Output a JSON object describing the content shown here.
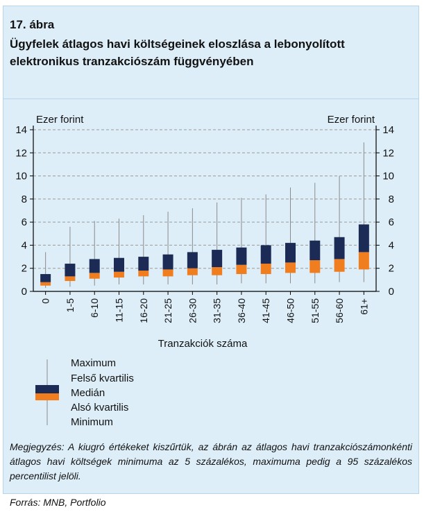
{
  "figure": {
    "number": "17. ábra",
    "title": "Ügyfelek átlagos havi költségeinek eloszlása a lebonyolított elektronikus tranzakciószám függvényében"
  },
  "chart_data": {
    "type": "boxplot",
    "x": [
      "0",
      "1-5",
      "6-10",
      "11-15",
      "16-20",
      "21-25",
      "26-30",
      "31-35",
      "36-40",
      "41-45",
      "46-50",
      "51-55",
      "56-60",
      "61+"
    ],
    "series": [
      {
        "min": [
          0.3,
          0.4,
          0.5,
          0.6,
          0.6,
          0.6,
          0.6,
          0.6,
          0.7,
          0.7,
          0.7,
          0.7,
          0.8,
          0.8
        ],
        "q1": [
          0.5,
          0.9,
          1.1,
          1.2,
          1.3,
          1.3,
          1.4,
          1.4,
          1.5,
          1.5,
          1.6,
          1.6,
          1.7,
          1.9
        ],
        "median": [
          0.8,
          1.3,
          1.6,
          1.7,
          1.8,
          1.9,
          2.0,
          2.1,
          2.3,
          2.4,
          2.5,
          2.7,
          2.8,
          3.4
        ],
        "q3": [
          1.5,
          2.4,
          2.8,
          2.9,
          3.0,
          3.2,
          3.4,
          3.6,
          3.8,
          4.0,
          4.2,
          4.4,
          4.7,
          5.8
        ],
        "max": [
          3.4,
          5.6,
          6.1,
          6.3,
          6.6,
          6.9,
          7.2,
          7.7,
          8.1,
          8.4,
          9.0,
          9.4,
          10.0,
          12.9
        ]
      }
    ],
    "y_ticks": [
      0,
      2,
      4,
      6,
      8,
      10,
      12,
      14
    ],
    "ylim": [
      0,
      14
    ],
    "ylabel_left": "Ezer forint",
    "ylabel_right": "Ezer forint",
    "xlabel": "Tranzakciók száma",
    "grid": "horizontal-dashed",
    "colors": {
      "upper_box": "#1b2b55",
      "lower_box": "#f07e1f",
      "whisker": "#8a8a8a",
      "grid": "#9a9a9a",
      "axis": "#000000"
    },
    "legend": {
      "placement": "bottom-left",
      "items": [
        "Maximum",
        "Felső kvartilis",
        "Medián",
        "Alsó kvartilis",
        "Minimum"
      ]
    }
  },
  "note": "Megjegyzés: A kiugró értékeket kiszűrtük, az ábrán az átlagos havi tranzakciószámonkénti átlagos havi költségek minimuma az 5 százalé­kos, maximuma pedig a 95 százalékos percentilist jelöli.",
  "source": "Forrás: MNB, Portfolio"
}
